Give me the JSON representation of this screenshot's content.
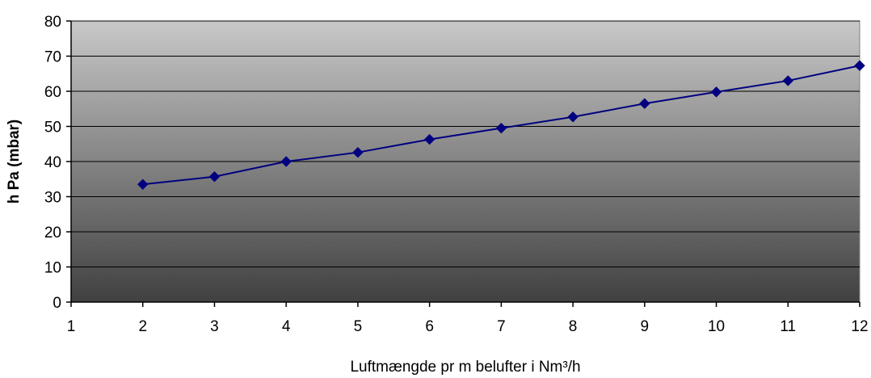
{
  "chart_data": {
    "type": "line",
    "title": "",
    "xlabel": "Luftmængde pr m belufter i Nm³/h",
    "ylabel": "h Pa (mbar)",
    "xlim": [
      1,
      12
    ],
    "ylim": [
      0,
      80
    ],
    "x_ticks": [
      1,
      2,
      3,
      4,
      5,
      6,
      7,
      8,
      9,
      10,
      11,
      12
    ],
    "y_ticks": [
      0,
      10,
      20,
      30,
      40,
      50,
      60,
      70,
      80
    ],
    "grid": "horizontal",
    "legend": "none",
    "series": [
      {
        "x": [
          2,
          3,
          4,
          5,
          6,
          7,
          8,
          9,
          10,
          11,
          12
        ],
        "y": [
          33.5,
          35.7,
          40.0,
          42.6,
          46.3,
          49.5,
          52.7,
          56.5,
          59.8,
          63.0,
          67.3
        ],
        "color": "#000080",
        "marker": "diamond"
      }
    ]
  },
  "colors": {
    "plot_gradient_top": "#c8c8c8",
    "plot_gradient_bottom": "#404040",
    "gridline": "#000000",
    "series_line": "#000080",
    "marker_fill": "#000080"
  }
}
